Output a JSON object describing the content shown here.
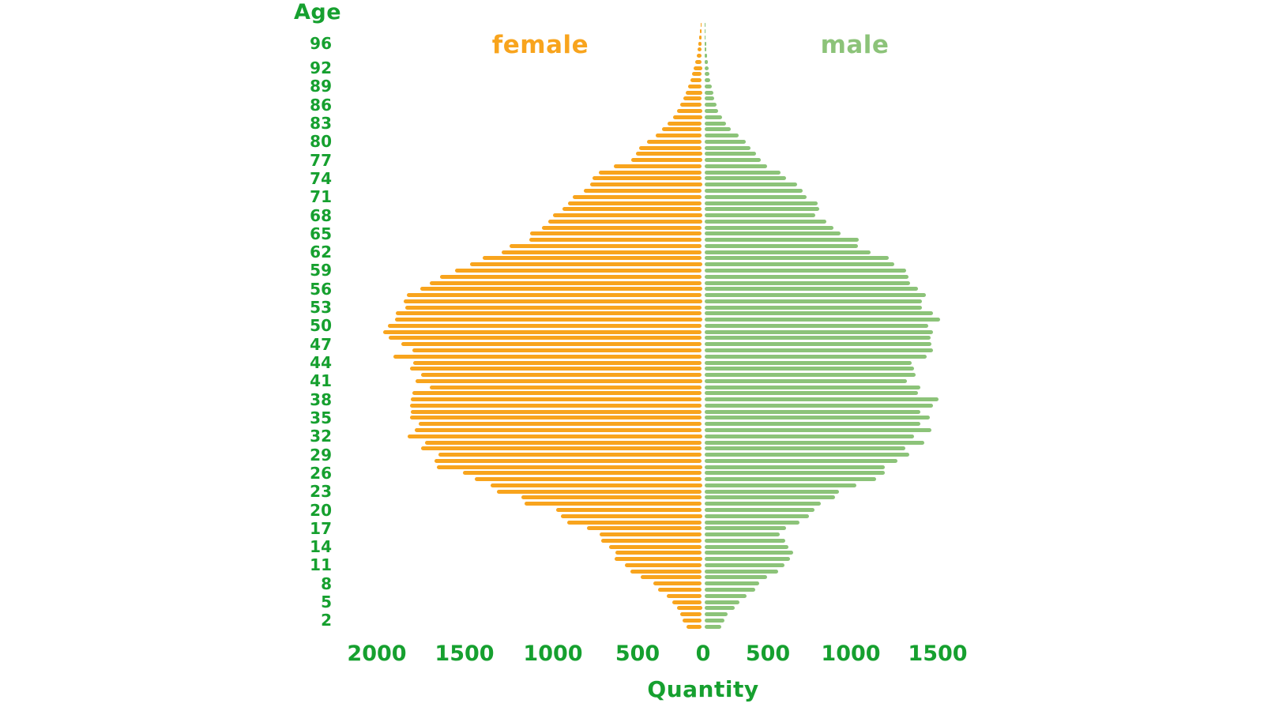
{
  "chart_data": {
    "type": "bar",
    "variant": "population_pyramid",
    "title": "",
    "ylabel": "Age",
    "xlabel": "Quantity",
    "legend": {
      "female": "female",
      "male": "male"
    },
    "colors": {
      "female": "#F8A41D",
      "male": "#8CC379",
      "axis_text": "#16A02F"
    },
    "y_tick_labels": [
      96,
      92,
      89,
      86,
      83,
      80,
      77,
      74,
      71,
      68,
      65,
      62,
      59,
      56,
      53,
      50,
      47,
      44,
      41,
      38,
      35,
      32,
      29,
      26,
      23,
      20,
      17,
      14,
      11,
      8,
      5,
      2
    ],
    "x_tick_labels": [
      "2000",
      "1500",
      "1000",
      "500",
      "0",
      "500",
      "1000",
      "1500"
    ],
    "x_axis_max_left": 2000,
    "x_axis_max_right": 1500,
    "grid": false,
    "legend_position": "top",
    "ages": [
      1,
      2,
      3,
      4,
      5,
      6,
      7,
      8,
      9,
      10,
      11,
      12,
      13,
      14,
      15,
      16,
      17,
      18,
      19,
      20,
      21,
      22,
      23,
      24,
      25,
      26,
      27,
      28,
      29,
      30,
      31,
      32,
      33,
      34,
      35,
      36,
      37,
      38,
      39,
      40,
      41,
      42,
      43,
      44,
      45,
      46,
      47,
      48,
      49,
      50,
      51,
      52,
      53,
      54,
      55,
      56,
      57,
      58,
      59,
      60,
      61,
      62,
      63,
      64,
      65,
      66,
      67,
      68,
      69,
      70,
      71,
      72,
      73,
      74,
      75,
      76,
      77,
      78,
      79,
      80,
      81,
      82,
      83,
      84,
      85,
      86,
      87,
      88,
      89,
      90,
      91,
      92,
      93,
      94,
      95,
      96,
      97,
      98,
      99
    ],
    "series": [
      {
        "name": "female",
        "side": "left",
        "color": "#F8A41D",
        "values": [
          95,
          115,
          130,
          150,
          180,
          210,
          265,
          295,
          370,
          430,
          465,
          525,
          520,
          560,
          605,
          615,
          695,
          810,
          850,
          880,
          1070,
          1090,
          1235,
          1275,
          1370,
          1440,
          1600,
          1610,
          1590,
          1695,
          1670,
          1775,
          1730,
          1705,
          1760,
          1755,
          1760,
          1755,
          1745,
          1640,
          1725,
          1695,
          1760,
          1740,
          1860,
          1745,
          1810,
          1890,
          1920,
          1895,
          1850,
          1845,
          1790,
          1800,
          1780,
          1700,
          1640,
          1580,
          1490,
          1400,
          1320,
          1205,
          1160,
          1040,
          1035,
          965,
          925,
          900,
          840,
          805,
          780,
          710,
          675,
          660,
          620,
          530,
          425,
          400,
          380,
          330,
          280,
          240,
          205,
          175,
          150,
          130,
          110,
          100,
          85,
          70,
          60,
          50,
          40,
          32,
          26,
          20,
          15,
          10,
          7
        ]
      },
      {
        "name": "male",
        "side": "right",
        "color": "#8CC379",
        "values": [
          100,
          120,
          140,
          185,
          210,
          255,
          305,
          330,
          380,
          445,
          485,
          515,
          535,
          505,
          490,
          455,
          495,
          575,
          630,
          665,
          700,
          790,
          810,
          915,
          1035,
          1090,
          1090,
          1165,
          1235,
          1210,
          1325,
          1265,
          1370,
          1300,
          1360,
          1300,
          1380,
          1410,
          1290,
          1300,
          1220,
          1275,
          1265,
          1250,
          1340,
          1380,
          1370,
          1365,
          1380,
          1350,
          1420,
          1380,
          1310,
          1310,
          1335,
          1290,
          1240,
          1230,
          1215,
          1145,
          1110,
          1000,
          925,
          930,
          820,
          780,
          735,
          670,
          695,
          685,
          615,
          595,
          560,
          495,
          460,
          380,
          340,
          310,
          280,
          250,
          205,
          160,
          130,
          105,
          85,
          75,
          60,
          55,
          45,
          38,
          32,
          26,
          21,
          17,
          13,
          10,
          8,
          6,
          4
        ]
      }
    ]
  }
}
